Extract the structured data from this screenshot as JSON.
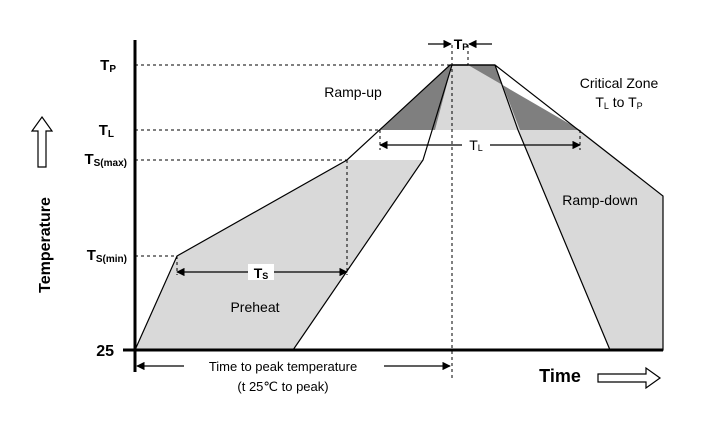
{
  "diagram": {
    "y_axis": {
      "title": "Temperature",
      "ticks": {
        "tp": {
          "main": "T",
          "sub": "P"
        },
        "tl": {
          "main": "T",
          "sub": "L"
        },
        "tsmax": {
          "main": "T",
          "sub": "S(max)"
        },
        "tsmin": {
          "main": "T",
          "sub": "S(min)"
        },
        "base": "25"
      }
    },
    "x_axis": {
      "title": "Time"
    },
    "labels": {
      "ramp_up": "Ramp-up",
      "ramp_down": "Ramp-down",
      "preheat": "Preheat",
      "critical_zone_line1": "Critical Zone",
      "critical_zone_line2": {
        "t1": "T",
        "s1": "L",
        "mid": " to T",
        "s2": "P"
      },
      "tp_interval": {
        "main": "T",
        "sub": "P"
      },
      "tl_interval": {
        "main": "T",
        "sub": "L"
      },
      "ts_interval": {
        "main": "T",
        "sub": "S"
      },
      "time_to_peak_line1": "Time to peak temperature",
      "time_to_peak_line2": "(t 25℃ to peak)"
    },
    "colors": {
      "zone_light": "#d9d9d9",
      "zone_dark": "#7f7f7f",
      "line": "#000000"
    }
  }
}
